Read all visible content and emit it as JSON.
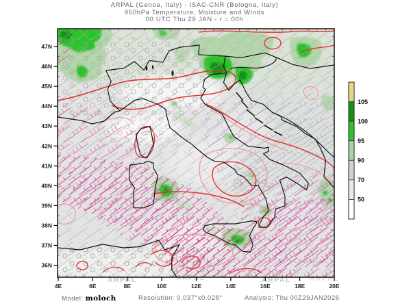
{
  "header": {
    "line1": "ARPAL (Genoa, Italy)  -  ISAC-CNR (Bologna, Italy)",
    "line2": "950hPa Temperature, Moisture and Winds",
    "line3_prefix": "00 UTC Thu 29 JAN  -  ",
    "line3_tau": "τ",
    "line3_suffix": " = 00h"
  },
  "map": {
    "lat_ticks": [
      "47N",
      "46N",
      "45N",
      "44N",
      "43N",
      "42N",
      "41N",
      "40N",
      "39N",
      "38N",
      "37N",
      "36N"
    ],
    "lon_ticks": [
      "4E",
      "6E",
      "8E",
      "10E",
      "12E",
      "14E",
      "16E",
      "18E",
      "20E"
    ],
    "watermark": "ARPAL"
  },
  "colorbar": {
    "tick_labels": [
      "105",
      "100",
      "95",
      "90",
      "70",
      "50"
    ],
    "segment_colors_top_to_bottom": [
      "#e9d687",
      "#149114",
      "#2cc42c",
      "#abceab",
      "#d2d2d2",
      "#e9e9e9",
      "#ffffff"
    ]
  },
  "footer": {
    "model_label": "Model:",
    "model_value": "moloch",
    "resolution_label": "Resolution:",
    "resolution_value": "0.037°x0.028°",
    "analysis_label": "Analysis:",
    "analysis_value": "Thu 00Z29JAN2026"
  },
  "palette": {
    "magenta_barbs": "#d6208f",
    "red_contour": "#e23333",
    "light_red_contour": "#ef9a9a",
    "green_high": "#149114",
    "green_mid": "#2cc42c",
    "green_light": "#b3d6ab",
    "yellow_top": "#e9d687",
    "purple_barbs": "#b49fd6",
    "gray_barbs": "#a9a9a9",
    "map_background": "#e3e3e3",
    "coastline": "#141414"
  },
  "chart_data": {
    "type": "heatmap",
    "title": "950hPa Temperature, Moisture and Winds",
    "x_ticks": [
      "4E",
      "6E",
      "8E",
      "10E",
      "12E",
      "14E",
      "16E",
      "18E",
      "20E"
    ],
    "y_ticks": [
      "47N",
      "46N",
      "45N",
      "44N",
      "43N",
      "42N",
      "41N",
      "40N",
      "39N",
      "38N",
      "37N",
      "36N"
    ],
    "colorbar_tick_values": [
      105,
      100,
      95,
      90,
      70,
      50
    ],
    "colorbar_segment_colors_top_to_bottom": [
      "#e9d687",
      "#149114",
      "#2cc42c",
      "#abceab",
      "#d2d2d2",
      "#e9e9e9",
      "#ffffff"
    ],
    "legend_position": "right"
  }
}
